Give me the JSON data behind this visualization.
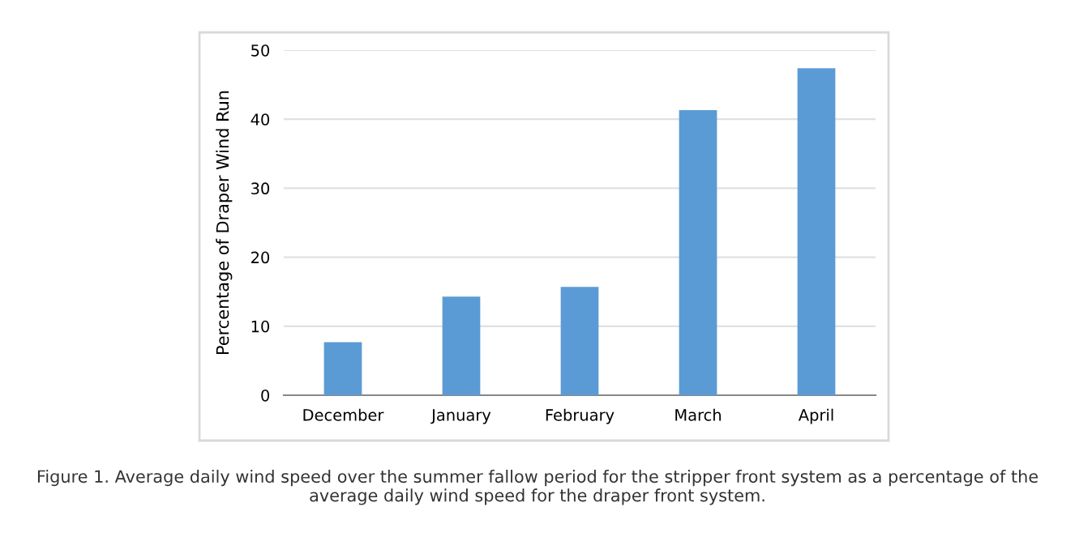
{
  "chart_data": {
    "type": "bar",
    "ylabel": "Percentage of Draper Wind Run",
    "categories": [
      "December",
      "January",
      "February",
      "March",
      "April"
    ],
    "values": [
      7.7,
      14.3,
      15.7,
      41.3,
      47.4
    ],
    "color": "#5b9bd5",
    "ylim": [
      0,
      50
    ],
    "yticks": [
      0,
      10,
      20,
      30,
      40,
      50
    ],
    "grid": "y",
    "annotations": [
      "Figure 1. Average daily wind speed over the summer fallow period for the stripper front system as a percentage of the average daily wind speed for the draper front system."
    ]
  }
}
